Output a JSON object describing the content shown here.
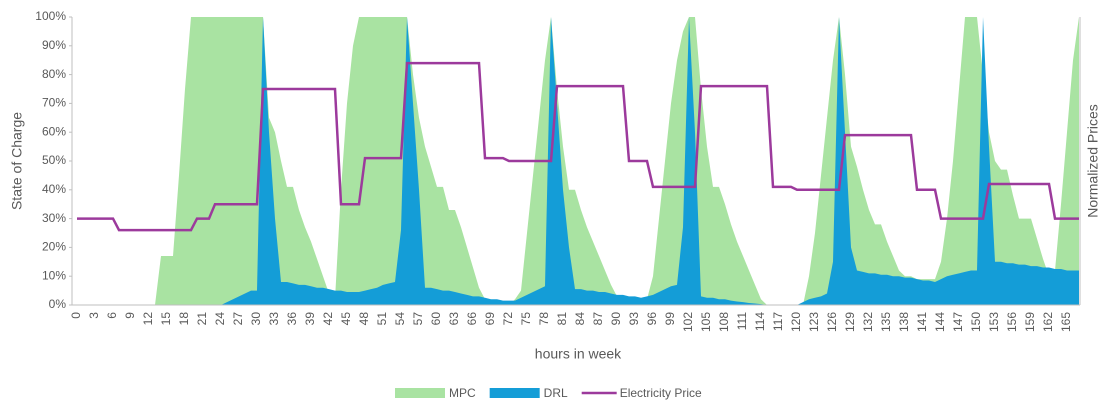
{
  "chart_data": {
    "type": "area",
    "y_axis_label": "State of Charge",
    "y2_axis_label": "Normalized Prices",
    "x_axis_label": "hours in week",
    "ylim": [
      0,
      100
    ],
    "yticks": [
      {
        "value": 0,
        "label": "0%"
      },
      {
        "value": 10,
        "label": "10%"
      },
      {
        "value": 20,
        "label": "20%"
      },
      {
        "value": 30,
        "label": "30%"
      },
      {
        "value": 40,
        "label": "40%"
      },
      {
        "value": 50,
        "label": "50%"
      },
      {
        "value": 60,
        "label": "60%"
      },
      {
        "value": 70,
        "label": "70%"
      },
      {
        "value": 80,
        "label": "80%"
      },
      {
        "value": 90,
        "label": "90%"
      },
      {
        "value": 100,
        "label": "100%"
      }
    ],
    "y2lim": [
      0,
      1
    ],
    "categories": [
      0,
      null,
      null,
      3,
      null,
      null,
      6,
      null,
      null,
      9,
      null,
      null,
      12,
      null,
      null,
      15,
      null,
      null,
      18,
      null,
      null,
      21,
      null,
      null,
      24,
      null,
      null,
      27,
      null,
      null,
      30,
      null,
      null,
      33,
      null,
      null,
      36,
      null,
      null,
      39,
      null,
      null,
      42,
      null,
      null,
      45,
      null,
      null,
      48,
      null,
      null,
      51,
      null,
      null,
      54,
      null,
      null,
      57,
      null,
      null,
      60,
      null,
      null,
      63,
      null,
      null,
      66,
      null,
      null,
      69,
      null,
      null,
      72,
      null,
      null,
      75,
      null,
      null,
      78,
      null,
      null,
      81,
      null,
      null,
      84,
      null,
      null,
      87,
      null,
      null,
      90,
      null,
      null,
      93,
      null,
      null,
      96,
      null,
      null,
      99,
      null,
      null,
      102,
      null,
      null,
      105,
      null,
      null,
      108,
      null,
      null,
      111,
      null,
      null,
      114,
      null,
      null,
      117,
      null,
      null,
      120,
      null,
      null,
      123,
      null,
      null,
      126,
      null,
      null,
      129,
      null,
      null,
      132,
      null,
      null,
      135,
      null,
      null,
      138,
      null,
      null,
      141,
      null,
      null,
      144,
      null,
      null,
      147,
      null,
      null,
      150,
      null,
      null,
      153,
      null,
      null,
      156,
      null,
      null,
      159,
      null,
      null,
      162,
      null,
      null,
      165,
      null,
      null
    ],
    "series": [
      {
        "name": "MPC",
        "color": "#a9e3a2",
        "kind": "area",
        "values": [
          0,
          0,
          0,
          0,
          0,
          0,
          0,
          0,
          0,
          0,
          0,
          0,
          0,
          0,
          17,
          17,
          17,
          45,
          75,
          100,
          100,
          100,
          100,
          100,
          100,
          100,
          100,
          100,
          100,
          100,
          100,
          100,
          65,
          60,
          50,
          41,
          41,
          33,
          27,
          22,
          16,
          10,
          4,
          2,
          40,
          70,
          90,
          100,
          100,
          100,
          100,
          100,
          100,
          100,
          100,
          100,
          80,
          65,
          55,
          48,
          41,
          41,
          33,
          33,
          27,
          20,
          13,
          6,
          2,
          0,
          0,
          0,
          0,
          2,
          5,
          25,
          45,
          65,
          85,
          100,
          75,
          55,
          40,
          40,
          33,
          27,
          22,
          17,
          12,
          7,
          3,
          2,
          2,
          2,
          2,
          2,
          10,
          30,
          50,
          70,
          85,
          95,
          100,
          100,
          75,
          55,
          41,
          41,
          35,
          28,
          22,
          17,
          12,
          7,
          2,
          0,
          0,
          0,
          0,
          0,
          0,
          0,
          10,
          25,
          45,
          65,
          85,
          100,
          80,
          55,
          48,
          40,
          33,
          28,
          28,
          22,
          17,
          12,
          10,
          10,
          9,
          9,
          9,
          9,
          15,
          30,
          50,
          75,
          100,
          100,
          100,
          80,
          60,
          50,
          47,
          47,
          38,
          30,
          30,
          30,
          23,
          16,
          10,
          12,
          35,
          60,
          85,
          100
        ]
      },
      {
        "name": "DRL",
        "color": "#149dd7",
        "kind": "area",
        "values": [
          0,
          0,
          0,
          0,
          0,
          0,
          0,
          0,
          0,
          0,
          0,
          0,
          0,
          0,
          0,
          0,
          0,
          0,
          0,
          0,
          0,
          0,
          0,
          0,
          0,
          1,
          2,
          3,
          4,
          5,
          5,
          100,
          60,
          30,
          8,
          8,
          7.5,
          7,
          7,
          6.5,
          6,
          6,
          5.5,
          5,
          5,
          4.5,
          4.5,
          4.5,
          5,
          5.5,
          6,
          7,
          7.5,
          8,
          26,
          100,
          70,
          40,
          6,
          6,
          5.5,
          5,
          5,
          4.5,
          4,
          3.5,
          3,
          3,
          2.5,
          2,
          2,
          1.5,
          1.5,
          1.5,
          2.5,
          3.5,
          4.5,
          5.5,
          6.5,
          100,
          70,
          40,
          20,
          5.5,
          5.5,
          5,
          5,
          4.5,
          4.5,
          4,
          3.5,
          3.5,
          3,
          3,
          2.5,
          3,
          3.5,
          4.5,
          5.5,
          6.5,
          7,
          27,
          100,
          60,
          3,
          2.5,
          2.5,
          2,
          2,
          1.5,
          1.2,
          1,
          0.7,
          0.5,
          0.3,
          0,
          0,
          0,
          0,
          0,
          0,
          1,
          2,
          2.5,
          3,
          4,
          15,
          100,
          60,
          20,
          12,
          11.5,
          11,
          11,
          10.5,
          10.5,
          10,
          10,
          9.5,
          9.5,
          9,
          8.5,
          8.5,
          8,
          9,
          10,
          10.5,
          11,
          11.5,
          12,
          12,
          100,
          55,
          15,
          15,
          14.5,
          14.5,
          14,
          14,
          13.5,
          13.5,
          13,
          13,
          12.5,
          12.5,
          12,
          12,
          12
        ]
      },
      {
        "name": "Electricity Price",
        "color": "#9c3a9c",
        "kind": "line",
        "axis": "y2",
        "values": [
          0.3,
          0.3,
          0.3,
          0.3,
          0.3,
          0.3,
          0.3,
          0.26,
          0.26,
          0.26,
          0.26,
          0.26,
          0.26,
          0.26,
          0.26,
          0.26,
          0.26,
          0.26,
          0.26,
          0.26,
          0.3,
          0.3,
          0.3,
          0.35,
          0.35,
          0.35,
          0.35,
          0.35,
          0.35,
          0.35,
          0.35,
          0.75,
          0.75,
          0.75,
          0.75,
          0.75,
          0.75,
          0.75,
          0.75,
          0.75,
          0.75,
          0.75,
          0.75,
          0.75,
          0.35,
          0.35,
          0.35,
          0.35,
          0.51,
          0.51,
          0.51,
          0.51,
          0.51,
          0.51,
          0.51,
          0.84,
          0.84,
          0.84,
          0.84,
          0.84,
          0.84,
          0.84,
          0.84,
          0.84,
          0.84,
          0.84,
          0.84,
          0.84,
          0.51,
          0.51,
          0.51,
          0.51,
          0.5,
          0.5,
          0.5,
          0.5,
          0.5,
          0.5,
          0.5,
          0.5,
          0.76,
          0.76,
          0.76,
          0.76,
          0.76,
          0.76,
          0.76,
          0.76,
          0.76,
          0.76,
          0.76,
          0.76,
          0.5,
          0.5,
          0.5,
          0.5,
          0.41,
          0.41,
          0.41,
          0.41,
          0.41,
          0.41,
          0.41,
          0.41,
          0.76,
          0.76,
          0.76,
          0.76,
          0.76,
          0.76,
          0.76,
          0.76,
          0.76,
          0.76,
          0.76,
          0.76,
          0.41,
          0.41,
          0.41,
          0.41,
          0.4,
          0.4,
          0.4,
          0.4,
          0.4,
          0.4,
          0.4,
          0.4,
          0.59,
          0.59,
          0.59,
          0.59,
          0.59,
          0.59,
          0.59,
          0.59,
          0.59,
          0.59,
          0.59,
          0.59,
          0.4,
          0.4,
          0.4,
          0.4,
          0.3,
          0.3,
          0.3,
          0.3,
          0.3,
          0.3,
          0.3,
          0.3,
          0.42,
          0.42,
          0.42,
          0.42,
          0.42,
          0.42,
          0.42,
          0.42,
          0.42,
          0.42,
          0.42,
          0.3,
          0.3,
          0.3,
          0.3,
          0.3
        ]
      }
    ]
  }
}
